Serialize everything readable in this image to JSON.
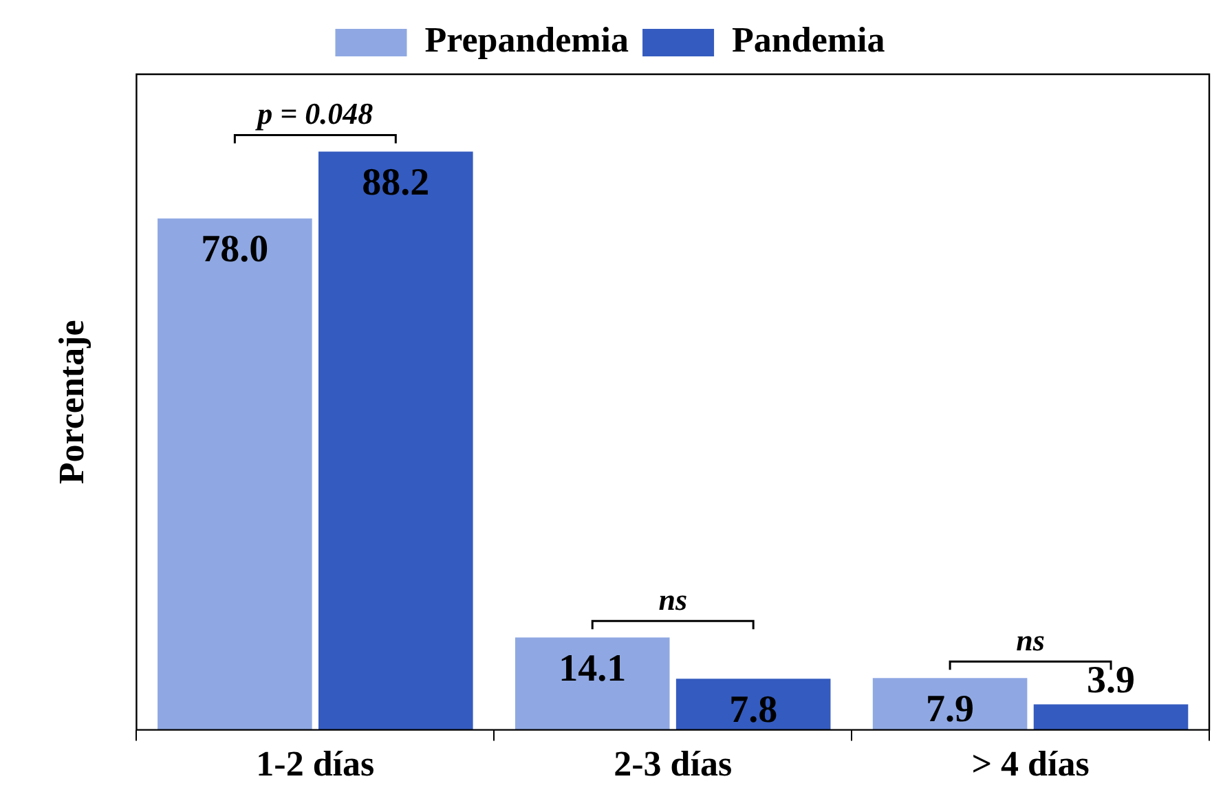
{
  "chart_data": {
    "type": "bar",
    "ylabel": "Porcentaje",
    "categories": [
      "1-2 días",
      "2-3 días",
      "> 4 días"
    ],
    "series": [
      {
        "name": "Prepandemia",
        "color": "#8fa8e3",
        "values": [
          78.0,
          14.1,
          7.9
        ],
        "value_labels": [
          "78.0",
          "14.1",
          "7.9"
        ]
      },
      {
        "name": "Pandemia",
        "color": "#345bbf",
        "values": [
          88.2,
          7.8,
          3.9
        ],
        "value_labels": [
          "88.2",
          "7.8",
          "3.9"
        ]
      }
    ],
    "annotations": [
      "p = 0.048",
      "ns",
      "ns"
    ],
    "legend": "top",
    "grid": false,
    "tick_labels": "x"
  }
}
